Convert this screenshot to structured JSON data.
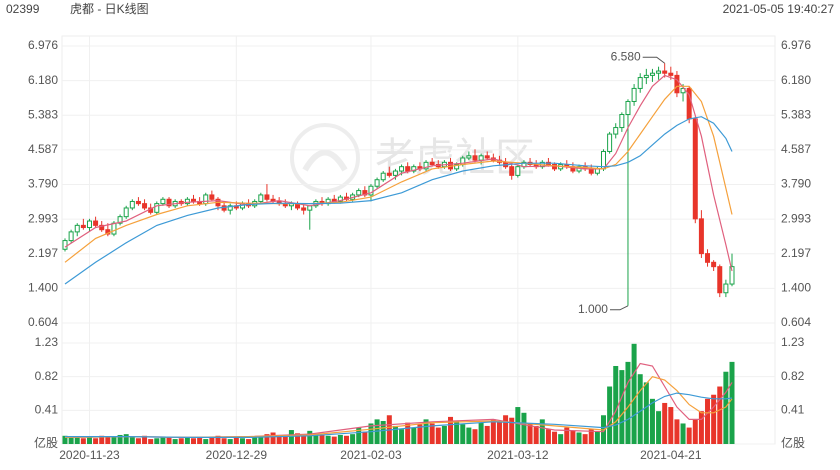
{
  "header": {
    "code": "02399",
    "name": "虎都 - 日K线图",
    "time": "2021-05-05 19:40:27"
  },
  "watermark": "老虎社区",
  "chart_data": {
    "type": "candlestick",
    "categories": [
      null,
      null,
      null,
      null,
      "2020-11-23",
      null,
      null,
      null,
      null,
      null,
      null,
      null,
      null,
      null,
      null,
      null,
      null,
      null,
      null,
      null,
      null,
      null,
      null,
      null,
      null,
      null,
      null,
      null,
      "2020-12-29",
      null,
      null,
      null,
      null,
      null,
      null,
      null,
      null,
      null,
      null,
      null,
      null,
      null,
      null,
      null,
      null,
      null,
      null,
      null,
      null,
      null,
      "2021-02-03",
      null,
      null,
      null,
      null,
      null,
      null,
      null,
      null,
      null,
      null,
      null,
      null,
      null,
      null,
      null,
      null,
      null,
      null,
      null,
      null,
      null,
      null,
      null,
      "2021-03-12",
      null,
      null,
      null,
      null,
      null,
      null,
      null,
      null,
      null,
      null,
      null,
      null,
      null,
      null,
      null,
      null,
      null,
      null,
      null,
      null,
      null,
      null,
      null,
      null,
      "2021-04-21",
      null,
      null,
      null,
      null,
      null,
      null,
      null,
      null,
      null,
      null
    ],
    "ohlc": [
      [
        2.3,
        2.55,
        2.25,
        2.5
      ],
      [
        2.5,
        2.75,
        2.45,
        2.7
      ],
      [
        2.7,
        2.9,
        2.6,
        2.85
      ],
      [
        2.85,
        3.0,
        2.75,
        2.8
      ],
      [
        2.8,
        3.0,
        2.7,
        2.95
      ],
      [
        2.95,
        3.05,
        2.8,
        2.85
      ],
      [
        2.85,
        2.95,
        2.7,
        2.75
      ],
      [
        2.75,
        2.9,
        2.6,
        2.65
      ],
      [
        2.65,
        2.95,
        2.6,
        2.9
      ],
      [
        2.9,
        3.1,
        2.85,
        3.05
      ],
      [
        3.05,
        3.3,
        3.0,
        3.25
      ],
      [
        3.25,
        3.45,
        3.2,
        3.4
      ],
      [
        3.4,
        3.5,
        3.3,
        3.35
      ],
      [
        3.35,
        3.45,
        3.2,
        3.25
      ],
      [
        3.25,
        3.35,
        3.1,
        3.15
      ],
      [
        3.15,
        3.4,
        3.1,
        3.35
      ],
      [
        3.35,
        3.5,
        3.3,
        3.45
      ],
      [
        3.45,
        3.5,
        3.25,
        3.3
      ],
      [
        3.3,
        3.45,
        3.25,
        3.4
      ],
      [
        3.4,
        3.45,
        3.3,
        3.35
      ],
      [
        3.35,
        3.5,
        3.3,
        3.45
      ],
      [
        3.45,
        3.55,
        3.35,
        3.4
      ],
      [
        3.4,
        3.5,
        3.3,
        3.35
      ],
      [
        3.35,
        3.6,
        3.3,
        3.55
      ],
      [
        3.55,
        3.65,
        3.4,
        3.45
      ],
      [
        3.45,
        3.5,
        3.2,
        3.3
      ],
      [
        3.3,
        3.4,
        3.15,
        3.2
      ],
      [
        3.2,
        3.35,
        3.1,
        3.3
      ],
      [
        3.3,
        3.4,
        3.2,
        3.25
      ],
      [
        3.25,
        3.4,
        3.2,
        3.35
      ],
      [
        3.35,
        3.45,
        3.25,
        3.3
      ],
      [
        3.3,
        3.45,
        3.25,
        3.4
      ],
      [
        3.4,
        3.6,
        3.35,
        3.55
      ],
      [
        3.55,
        3.8,
        3.4,
        3.45
      ],
      [
        3.45,
        3.55,
        3.35,
        3.4
      ],
      [
        3.4,
        3.5,
        3.3,
        3.35
      ],
      [
        3.35,
        3.45,
        3.25,
        3.3
      ],
      [
        3.3,
        3.4,
        3.2,
        3.35
      ],
      [
        3.35,
        3.4,
        3.2,
        3.25
      ],
      [
        3.25,
        3.35,
        3.1,
        3.2
      ],
      [
        3.2,
        3.3,
        2.75,
        3.3
      ],
      [
        3.3,
        3.45,
        3.25,
        3.4
      ],
      [
        3.4,
        3.5,
        3.3,
        3.35
      ],
      [
        3.35,
        3.5,
        3.3,
        3.45
      ],
      [
        3.45,
        3.55,
        3.35,
        3.4
      ],
      [
        3.4,
        3.55,
        3.35,
        3.5
      ],
      [
        3.5,
        3.6,
        3.4,
        3.45
      ],
      [
        3.45,
        3.6,
        3.4,
        3.55
      ],
      [
        3.55,
        3.7,
        3.5,
        3.65
      ],
      [
        3.65,
        3.75,
        3.5,
        3.55
      ],
      [
        3.55,
        3.8,
        3.4,
        3.75
      ],
      [
        3.75,
        3.95,
        3.7,
        3.9
      ],
      [
        3.9,
        4.1,
        3.85,
        4.05
      ],
      [
        4.05,
        4.2,
        3.95,
        4.0
      ],
      [
        4.0,
        4.15,
        3.9,
        4.1
      ],
      [
        4.1,
        4.25,
        4.0,
        4.2
      ],
      [
        4.2,
        4.3,
        4.05,
        4.1
      ],
      [
        4.1,
        4.25,
        4.05,
        4.2
      ],
      [
        4.2,
        4.3,
        4.1,
        4.15
      ],
      [
        4.15,
        4.35,
        4.1,
        4.3
      ],
      [
        4.3,
        4.4,
        4.2,
        4.25
      ],
      [
        4.25,
        4.35,
        4.15,
        4.2
      ],
      [
        4.2,
        4.35,
        4.15,
        4.3
      ],
      [
        4.3,
        4.4,
        4.1,
        4.15
      ],
      [
        4.15,
        4.3,
        4.1,
        4.25
      ],
      [
        4.25,
        4.45,
        4.2,
        4.4
      ],
      [
        4.4,
        4.55,
        4.35,
        4.45
      ],
      [
        4.45,
        4.6,
        4.3,
        4.35
      ],
      [
        4.35,
        4.5,
        4.25,
        4.45
      ],
      [
        4.45,
        4.55,
        4.35,
        4.4
      ],
      [
        4.4,
        4.5,
        4.3,
        4.35
      ],
      [
        4.35,
        4.45,
        4.25,
        4.3
      ],
      [
        4.3,
        4.4,
        4.15,
        4.2
      ],
      [
        4.2,
        4.3,
        3.9,
        4.0
      ],
      [
        4.0,
        4.25,
        3.95,
        4.2
      ],
      [
        4.2,
        4.35,
        4.15,
        4.3
      ],
      [
        4.3,
        4.4,
        4.2,
        4.25
      ],
      [
        4.25,
        4.35,
        4.15,
        4.2
      ],
      [
        4.2,
        4.35,
        4.15,
        4.3
      ],
      [
        4.3,
        4.4,
        4.2,
        4.25
      ],
      [
        4.25,
        4.3,
        4.1,
        4.15
      ],
      [
        4.15,
        4.3,
        4.1,
        4.25
      ],
      [
        4.25,
        4.35,
        4.15,
        4.2
      ],
      [
        4.2,
        4.3,
        4.05,
        4.1
      ],
      [
        4.1,
        4.25,
        4.05,
        4.2
      ],
      [
        4.2,
        4.3,
        4.1,
        4.15
      ],
      [
        4.15,
        4.25,
        4.0,
        4.05
      ],
      [
        4.05,
        4.2,
        4.0,
        4.15
      ],
      [
        4.15,
        4.6,
        4.1,
        4.55
      ],
      [
        4.55,
        5.0,
        4.5,
        4.95
      ],
      [
        4.95,
        5.2,
        4.85,
        5.1
      ],
      [
        5.1,
        5.45,
        5.0,
        5.4
      ],
      [
        5.4,
        5.75,
        1.0,
        5.7
      ],
      [
        5.7,
        6.1,
        5.6,
        6.0
      ],
      [
        6.0,
        6.35,
        5.9,
        6.25
      ],
      [
        6.25,
        6.45,
        6.1,
        6.3
      ],
      [
        6.3,
        6.45,
        6.15,
        6.35
      ],
      [
        6.35,
        6.5,
        6.2,
        6.4
      ],
      [
        6.4,
        6.58,
        6.25,
        6.35
      ],
      [
        6.35,
        6.5,
        6.2,
        6.3
      ],
      [
        6.3,
        6.4,
        5.8,
        5.9
      ],
      [
        5.9,
        6.1,
        5.7,
        6.0
      ],
      [
        6.0,
        6.05,
        5.2,
        5.3
      ],
      [
        5.3,
        5.35,
        2.9,
        3.0
      ],
      [
        3.0,
        3.2,
        2.1,
        2.2
      ],
      [
        2.2,
        2.3,
        1.9,
        2.0
      ],
      [
        2.0,
        2.05,
        1.8,
        1.9
      ],
      [
        1.9,
        1.95,
        1.2,
        1.3
      ],
      [
        1.3,
        1.6,
        1.2,
        1.5
      ],
      [
        1.5,
        2.2,
        1.45,
        1.9
      ]
    ],
    "volume": [
      0.1,
      0.09,
      0.08,
      0.07,
      0.08,
      0.07,
      0.1,
      0.08,
      0.09,
      0.11,
      0.12,
      0.08,
      0.07,
      0.1,
      0.06,
      0.07,
      0.08,
      0.09,
      0.06,
      0.07,
      0.08,
      0.07,
      0.08,
      0.06,
      0.09,
      0.1,
      0.07,
      0.06,
      0.08,
      0.07,
      0.06,
      0.09,
      0.08,
      0.12,
      0.14,
      0.1,
      0.11,
      0.17,
      0.13,
      0.1,
      0.16,
      0.12,
      0.11,
      0.1,
      0.09,
      0.11,
      0.1,
      0.12,
      0.2,
      0.15,
      0.25,
      0.3,
      0.28,
      0.35,
      0.22,
      0.18,
      0.26,
      0.2,
      0.24,
      0.3,
      0.25,
      0.2,
      0.22,
      0.33,
      0.28,
      0.24,
      0.2,
      0.18,
      0.26,
      0.22,
      0.3,
      0.28,
      0.35,
      0.32,
      0.45,
      0.38,
      0.25,
      0.22,
      0.3,
      0.18,
      0.15,
      0.12,
      0.2,
      0.16,
      0.14,
      0.12,
      0.18,
      0.15,
      0.35,
      0.7,
      0.95,
      0.9,
      1.0,
      1.22,
      0.85,
      0.75,
      0.55,
      0.4,
      0.5,
      0.45,
      0.3,
      0.25,
      0.2,
      0.3,
      0.4,
      0.55,
      0.6,
      0.7,
      0.88,
      1.0
    ],
    "up_color": "#1aa34a",
    "down_color": "#e8352a",
    "max_label": "6.580",
    "min_label": "1.000",
    "ylim": [
      0.604,
      6.976
    ],
    "yticks": [
      0.604,
      {
        "value": 1.4,
        "label": "1.400"
      },
      2.197,
      2.993,
      {
        "value": 3.79,
        "label": "3.790"
      },
      4.587,
      5.383,
      {
        "value": 6.18,
        "label": "6.180"
      },
      6.976
    ],
    "vol_ylim": [
      0,
      1.23
    ],
    "vol_yticks": [
      {
        "value": 0,
        "label": "亿股"
      },
      0.41,
      0.82,
      1.23
    ],
    "grid": true,
    "lines": [
      {
        "color": "#e0607e",
        "x": [
          0,
          5,
          10,
          15,
          20,
          25,
          30,
          35,
          40,
          45,
          50,
          55,
          60,
          65,
          70,
          75,
          80,
          85,
          88,
          90,
          92,
          94,
          96,
          98,
          100,
          102,
          104,
          106,
          108,
          109
        ],
        "values": [
          2.35,
          2.8,
          2.95,
          3.3,
          3.38,
          3.42,
          3.32,
          3.42,
          3.3,
          3.42,
          3.6,
          4.05,
          4.22,
          4.28,
          4.38,
          4.2,
          4.22,
          4.15,
          4.15,
          4.5,
          5.1,
          5.6,
          6.05,
          6.3,
          6.2,
          5.85,
          4.9,
          3.55,
          2.4,
          1.8
        ]
      },
      {
        "color": "#f5a13c",
        "x": [
          0,
          5,
          10,
          15,
          20,
          25,
          30,
          35,
          40,
          45,
          50,
          55,
          60,
          65,
          70,
          75,
          80,
          85,
          88,
          90,
          92,
          94,
          96,
          98,
          100,
          102,
          104,
          106,
          108,
          109
        ],
        "values": [
          2.0,
          2.55,
          2.85,
          3.1,
          3.3,
          3.38,
          3.36,
          3.35,
          3.35,
          3.38,
          3.5,
          3.85,
          4.15,
          4.25,
          4.33,
          4.28,
          4.22,
          4.18,
          4.15,
          4.25,
          4.55,
          4.95,
          5.35,
          5.75,
          6.05,
          6.05,
          5.7,
          4.9,
          3.7,
          3.1
        ]
      },
      {
        "color": "#3d9ad6",
        "x": [
          0,
          5,
          10,
          15,
          20,
          25,
          30,
          35,
          40,
          45,
          50,
          55,
          60,
          65,
          70,
          75,
          80,
          85,
          88,
          90,
          92,
          94,
          96,
          98,
          100,
          102,
          104,
          106,
          108,
          109
        ],
        "values": [
          1.5,
          2.0,
          2.45,
          2.85,
          3.08,
          3.25,
          3.33,
          3.36,
          3.35,
          3.36,
          3.42,
          3.6,
          3.9,
          4.1,
          4.22,
          4.28,
          4.28,
          4.22,
          4.2,
          4.22,
          4.3,
          4.45,
          4.7,
          4.95,
          5.15,
          5.3,
          5.35,
          5.2,
          4.85,
          4.55
        ]
      }
    ],
    "vol_lines": [
      {
        "color": "#e0607e",
        "x": [
          0,
          10,
          20,
          30,
          40,
          50,
          60,
          70,
          80,
          88,
          90,
          92,
          94,
          96,
          98,
          100,
          102,
          104,
          106,
          108,
          109
        ],
        "values": [
          0.08,
          0.09,
          0.08,
          0.09,
          0.12,
          0.22,
          0.27,
          0.3,
          0.17,
          0.15,
          0.4,
          0.75,
          0.98,
          0.95,
          0.7,
          0.45,
          0.3,
          0.3,
          0.45,
          0.63,
          0.75
        ]
      },
      {
        "color": "#f5a13c",
        "x": [
          0,
          10,
          20,
          30,
          40,
          50,
          60,
          70,
          80,
          88,
          90,
          92,
          94,
          96,
          98,
          100,
          102,
          104,
          106,
          108,
          109
        ],
        "values": [
          0.08,
          0.09,
          0.08,
          0.09,
          0.11,
          0.18,
          0.26,
          0.28,
          0.22,
          0.17,
          0.27,
          0.45,
          0.65,
          0.82,
          0.78,
          0.65,
          0.48,
          0.38,
          0.38,
          0.45,
          0.55
        ]
      },
      {
        "color": "#3d9ad6",
        "x": [
          0,
          10,
          20,
          30,
          40,
          50,
          60,
          70,
          80,
          88,
          90,
          92,
          94,
          96,
          98,
          100,
          102,
          104,
          106,
          108,
          109
        ],
        "values": [
          0.09,
          0.09,
          0.08,
          0.08,
          0.1,
          0.15,
          0.22,
          0.27,
          0.24,
          0.2,
          0.23,
          0.3,
          0.4,
          0.5,
          0.58,
          0.62,
          0.6,
          0.57,
          0.55,
          0.55,
          0.56
        ]
      }
    ]
  }
}
